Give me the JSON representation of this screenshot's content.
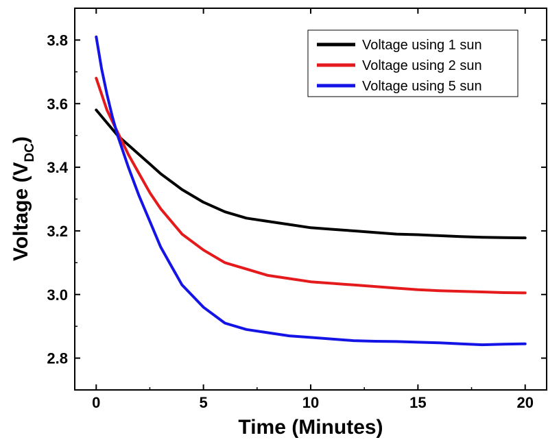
{
  "chart_data": {
    "type": "line",
    "xlabel": "Time (Minutes)",
    "ylabel": {
      "main": "Voltage (V",
      "subscript": "DC",
      "close": ")"
    },
    "xlim": [
      -1,
      21
    ],
    "ylim": [
      2.7,
      3.9
    ],
    "xticks": [
      "0",
      "5",
      "10",
      "15",
      "20"
    ],
    "xtick_values": [
      0,
      5,
      10,
      15,
      20
    ],
    "yticks": [
      "2.8",
      "3.0",
      "3.2",
      "3.4",
      "3.6",
      "3.8"
    ],
    "ytick_values": [
      2.8,
      3.0,
      3.2,
      3.4,
      3.6,
      3.8
    ],
    "grid": false,
    "legend_position": "top-right",
    "series": [
      {
        "name": "Voltage using 1 sun",
        "color": "#000000",
        "x": [
          0,
          0.5,
          1,
          1.5,
          2,
          2.5,
          3,
          4,
          5,
          6,
          7,
          8,
          9,
          10,
          11,
          12,
          13,
          14,
          15,
          16,
          17,
          18,
          19,
          20
        ],
        "y": [
          3.58,
          3.54,
          3.5,
          3.47,
          3.44,
          3.41,
          3.38,
          3.33,
          3.29,
          3.26,
          3.24,
          3.23,
          3.22,
          3.21,
          3.205,
          3.2,
          3.195,
          3.19,
          3.188,
          3.185,
          3.182,
          3.18,
          3.179,
          3.178
        ]
      },
      {
        "name": "Voltage using 2 sun",
        "color": "#e41a1c",
        "x": [
          0,
          0.5,
          1,
          1.5,
          2,
          2.5,
          3,
          4,
          5,
          6,
          7,
          8,
          9,
          10,
          11,
          12,
          13,
          14,
          15,
          16,
          17,
          18,
          19,
          20
        ],
        "y": [
          3.68,
          3.58,
          3.51,
          3.44,
          3.38,
          3.32,
          3.27,
          3.19,
          3.14,
          3.1,
          3.08,
          3.06,
          3.05,
          3.04,
          3.035,
          3.03,
          3.025,
          3.02,
          3.015,
          3.012,
          3.01,
          3.008,
          3.006,
          3.005
        ]
      },
      {
        "name": "Voltage using 5 sun",
        "color": "#1414e6",
        "x": [
          0,
          0.25,
          0.5,
          0.75,
          1,
          1.5,
          2,
          2.5,
          3,
          3.5,
          4,
          5,
          6,
          7,
          8,
          9,
          10,
          11,
          12,
          13,
          14,
          15,
          16,
          17,
          18,
          19,
          20
        ],
        "y": [
          3.81,
          3.71,
          3.63,
          3.56,
          3.5,
          3.4,
          3.31,
          3.23,
          3.15,
          3.09,
          3.03,
          2.96,
          2.91,
          2.89,
          2.88,
          2.87,
          2.865,
          2.86,
          2.855,
          2.853,
          2.852,
          2.85,
          2.848,
          2.845,
          2.842,
          2.844,
          2.845
        ]
      }
    ]
  }
}
